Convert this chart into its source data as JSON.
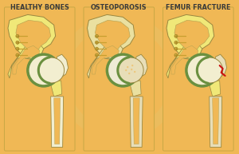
{
  "labels": [
    "HEALTHY BONES",
    "OSTEOPOROSIS",
    "FEMUR FRACTURE"
  ],
  "bg_color": "#F0B855",
  "skin_orange": "#F0B855",
  "panel_cream": "#F5D890",
  "bone_yellow": "#F0E878",
  "bone_yellow2": "#EEE070",
  "bone_white": "#F2EED0",
  "bone_offwhite": "#EDE8C8",
  "bone_osteo": "#E8DEB8",
  "cartilage_green": "#6B9040",
  "cartilage_light": "#8AA855",
  "fracture_red": "#CC1010",
  "screw_gold": "#C8A030",
  "screw_dark": "#A08020",
  "outline": "#9A8840",
  "outline2": "#B0A050",
  "text_color": "#3A3A3A",
  "label_fontsize": 5.8,
  "panel_edge": "#C8A845"
}
